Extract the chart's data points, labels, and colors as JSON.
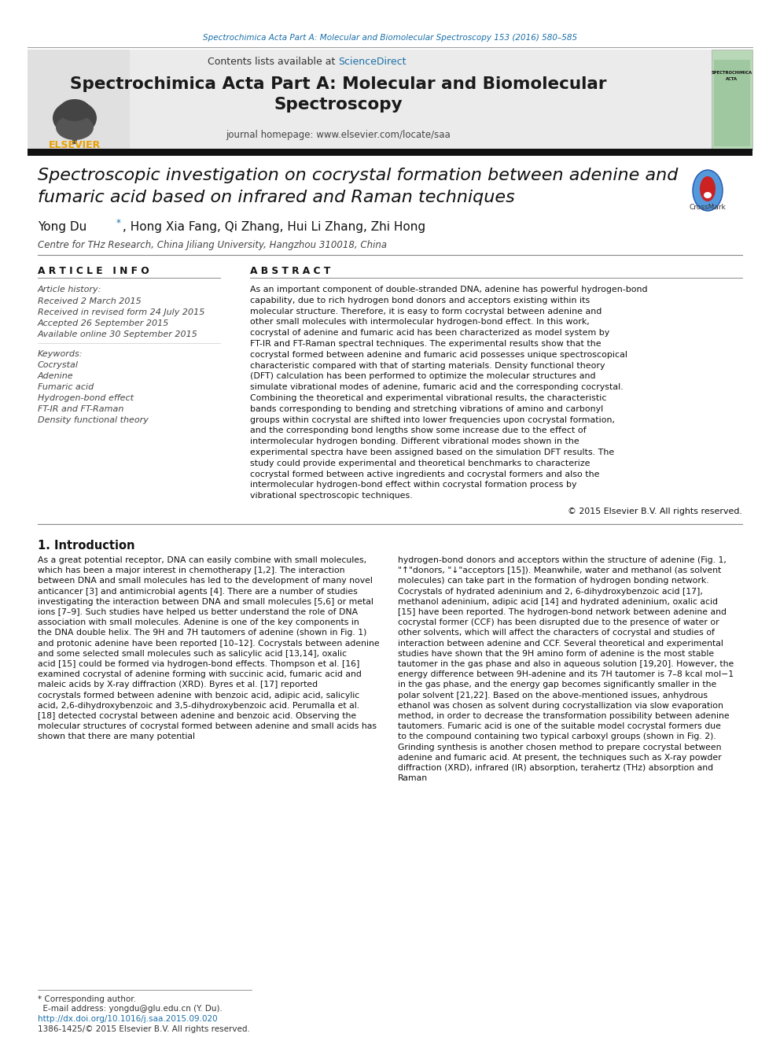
{
  "page_bg": "#ffffff",
  "top_citation": "Spectrochimica Acta Part A: Molecular and Biomolecular Spectroscopy 153 (2016) 580–585",
  "top_citation_color": "#1a6fa8",
  "header_bg": "#e8e8e8",
  "contents_text": "Contents lists available at ",
  "sciencedirect_text": "ScienceDirect",
  "sciencedirect_color": "#1a6fa8",
  "journal_title": "Spectrochimica Acta Part A: Molecular and Biomolecular\nSpectroscopy",
  "journal_homepage": "journal homepage: www.elsevier.com/locate/saa",
  "divider_color": "#2c2c2c",
  "article_title": "Spectroscopic investigation on cocrystal formation between adenine and\nfumaric acid based on infrared and Raman techniques",
  "authors_part1": "Yong Du ",
  "authors_star": "*",
  "authors_part2": ", Hong Xia Fang, Qi Zhang, Hui Li Zhang, Zhi Hong",
  "affiliation": "Centre for THz Research, China Jiliang University, Hangzhou 310018, China",
  "article_info_header": "A R T I C L E   I N F O",
  "abstract_header": "A B S T R A C T",
  "article_history_label": "Article history:",
  "received": "Received 2 March 2015",
  "received_revised": "Received in revised form 24 July 2015",
  "accepted": "Accepted 26 September 2015",
  "available_online": "Available online 30 September 2015",
  "keywords_label": "Keywords:",
  "keywords": [
    "Cocrystal",
    "Adenine",
    "Fumaric acid",
    "Hydrogen-bond effect",
    "FT-IR and FT-Raman",
    "Density functional theory"
  ],
  "abstract_text": "As an important component of double-stranded DNA, adenine has powerful hydrogen-bond capability, due to rich hydrogen bond donors and acceptors existing within its molecular structure. Therefore, it is easy to form cocrystal between adenine and other small molecules with intermolecular hydrogen-bond effect. In this work, cocrystal of adenine and fumaric acid has been characterized as model system by FT-IR and FT-Raman spectral techniques. The experimental results show that the cocrystal formed between adenine and fumaric acid possesses unique spectroscopical characteristic compared with that of starting materials. Density functional theory (DFT) calculation has been performed to optimize the molecular structures and simulate vibrational modes of adenine, fumaric acid and the corresponding cocrystal. Combining the theoretical and experimental vibrational results, the characteristic bands corresponding to bending and stretching vibrations of amino and carbonyl groups within cocrystal are shifted into lower frequencies upon cocrystal formation, and the corresponding bond lengths show some increase due to the effect of intermolecular hydrogen bonding. Different vibrational modes shown in the experimental spectra have been assigned based on the simulation DFT results. The study could provide experimental and theoretical benchmarks to characterize cocrystal formed between active ingredients and cocrystal formers and also the intermolecular hydrogen-bond effect within cocrystal formation process by vibrational spectroscopic techniques.",
  "copyright": "© 2015 Elsevier B.V. All rights reserved.",
  "intro_header": "1. Introduction",
  "intro_col1": "As a great potential receptor, DNA can easily combine with small molecules, which has been a major interest in chemotherapy [1,2]. The interaction between DNA and small molecules has led to the development of many novel anticancer [3] and antimicrobial agents [4]. There are a number of studies investigating the interaction between DNA and small molecules [5,6] or metal ions [7–9]. Such studies have helped us better understand the role of DNA association with small molecules. Adenine is one of the key components in the DNA double helix. The 9H and 7H tautomers of adenine (shown in Fig. 1) and protonic adenine have been reported [10–12]. Cocrystals between adenine and some selected small molecules such as salicylic acid [13,14], oxalic acid [15] could be formed via hydrogen-bond effects. Thompson et al. [16] examined cocrystal of adenine forming with succinic acid, fumaric acid and maleic acids by X-ray diffraction (XRD). Byres et al. [17] reported cocrystals formed between adenine with benzoic acid, adipic acid, salicylic acid, 2,6-dihydroxybenzoic and 3,5-dihydroxybenzoic acid. Perumalla et al. [18] detected cocrystal between adenine and benzoic acid. Observing the molecular structures of cocrystal formed between adenine and small acids has shown that there are many potential",
  "intro_col2": "hydrogen-bond donors and acceptors within the structure of adenine (Fig. 1, \"↑\"donors, \"↓\"acceptors [15]). Meanwhile, water and methanol (as solvent molecules) can take part in the formation of hydrogen bonding network. Cocrystals of hydrated adeninium and 2, 6-dihydroxybenzoic acid [17], methanol adeninium, adipic acid [14] and hydrated adeninium, oxalic acid [15] have been reported. The hydrogen-bond network between adenine and cocrystal former (CCF) has been disrupted due to the presence of water or other solvents, which will affect the characters of cocrystal and studies of interaction between adenine and CCF. Several theoretical and experimental studies have shown that the 9H amino form of adenine is the most stable tautomer in the gas phase and also in aqueous solution [19,20]. However, the energy difference between 9H-adenine and its 7H tautomer is 7–8 kcal mol−1 in the gas phase, and the energy gap becomes significantly smaller in the polar solvent [21,22]. Based on the above-mentioned issues, anhydrous ethanol was chosen as solvent during cocrystallization via slow evaporation method, in order to decrease the transformation possibility between adenine tautomers. Fumaric acid is one of the suitable model cocrystal formers due to the compound containing two typical carboxyl groups (shown in Fig. 2). Grinding synthesis is another chosen method to prepare cocrystal between adenine and fumaric acid. At present, the techniques such as X-ray powder diffraction (XRD), infrared (IR) absorption, terahertz (THz) absorption and Raman",
  "footer_star": "* Corresponding author.",
  "footer_email": "  E-mail address: yongdu@glu.edu.cn (Y. Du).",
  "footer_doi": "http://dx.doi.org/10.1016/j.saa.2015.09.020",
  "footer_issn": "1386-1425/© 2015 Elsevier B.V. All rights reserved.",
  "ref_color": "#1a6fa8",
  "text_color": "#000000"
}
